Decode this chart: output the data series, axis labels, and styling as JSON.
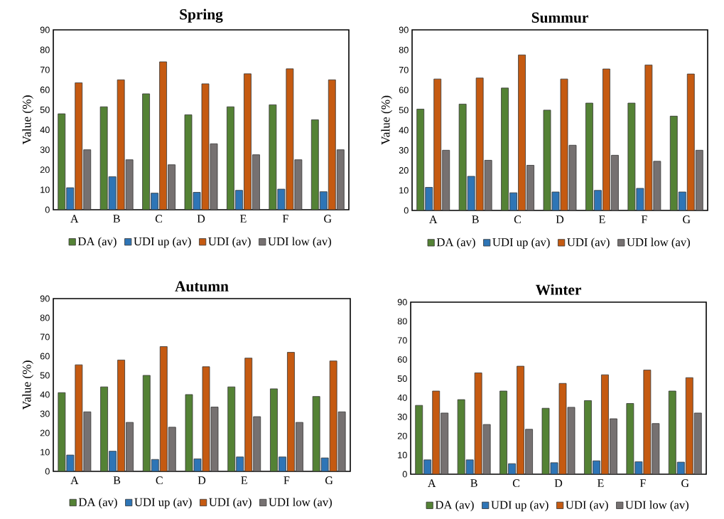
{
  "chart_data": [
    {
      "type": "bar",
      "title": "Spring",
      "ylabel": "Value (%)",
      "categories": [
        "A",
        "B",
        "C",
        "D",
        "E",
        "F",
        "G"
      ],
      "ylim": [
        0,
        90
      ],
      "yticks": [
        0,
        10,
        20,
        30,
        40,
        50,
        60,
        70,
        80,
        90
      ],
      "legend": "bottom",
      "series": [
        {
          "name": "DA (av)",
          "color": "#548235",
          "values": [
            48,
            51.5,
            58,
            47.5,
            51.5,
            52.5,
            45
          ]
        },
        {
          "name": "UDI up (av)",
          "color": "#2e75b6",
          "values": [
            11,
            16.5,
            8.3,
            8.7,
            9.7,
            10.3,
            9
          ]
        },
        {
          "name": "UDI (av)",
          "color": "#c55a11",
          "values": [
            63.5,
            65,
            74,
            63,
            68,
            70.5,
            65
          ]
        },
        {
          "name": "UDI low (av)",
          "color": "#767171",
          "values": [
            30,
            25,
            22.5,
            33,
            27.5,
            25,
            30
          ]
        }
      ]
    },
    {
      "type": "bar",
      "title": "Summur",
      "ylabel": "Value (%)",
      "categories": [
        "A",
        "B",
        "C",
        "D",
        "E",
        "F",
        "G"
      ],
      "ylim": [
        0,
        90
      ],
      "yticks": [
        0,
        10,
        20,
        30,
        40,
        50,
        60,
        70,
        80,
        90
      ],
      "legend": "bottom",
      "series": [
        {
          "name": "DA (av)",
          "color": "#548235",
          "values": [
            50.5,
            53,
            61,
            50,
            53.5,
            53.5,
            47
          ]
        },
        {
          "name": "UDI up (av)",
          "color": "#2e75b6",
          "values": [
            11.5,
            17,
            8.8,
            9.2,
            10,
            11,
            9.2
          ]
        },
        {
          "name": "UDI (av)",
          "color": "#c55a11",
          "values": [
            65.5,
            66,
            77.5,
            65.5,
            70.5,
            72.5,
            68
          ]
        },
        {
          "name": "UDI low (av)",
          "color": "#767171",
          "values": [
            30,
            25,
            22.5,
            32.5,
            27.5,
            24.5,
            30
          ]
        }
      ]
    },
    {
      "type": "bar",
      "title": "Autumn",
      "ylabel": "Value (%)",
      "categories": [
        "A",
        "B",
        "C",
        "D",
        "E",
        "F",
        "G"
      ],
      "ylim": [
        0,
        90
      ],
      "yticks": [
        0,
        10,
        20,
        30,
        40,
        50,
        60,
        70,
        80,
        90
      ],
      "legend": "bottom",
      "series": [
        {
          "name": "DA (av)",
          "color": "#548235",
          "values": [
            41,
            44,
            50,
            40,
            44,
            43,
            39
          ]
        },
        {
          "name": "UDI up (av)",
          "color": "#2e75b6",
          "values": [
            8.5,
            10.5,
            6.2,
            6.5,
            7.5,
            7.5,
            7
          ]
        },
        {
          "name": "UDI (av)",
          "color": "#c55a11",
          "values": [
            55.5,
            58,
            65,
            54.5,
            59,
            62,
            57.5
          ]
        },
        {
          "name": "UDI low (av)",
          "color": "#767171",
          "values": [
            31,
            25.5,
            23,
            33.5,
            28.5,
            25.5,
            31
          ]
        }
      ]
    },
    {
      "type": "bar",
      "title": "Winter",
      "categories": [
        "A",
        "B",
        "C",
        "D",
        "E",
        "F",
        "G"
      ],
      "ylim": [
        0,
        90
      ],
      "yticks": [
        0,
        10,
        20,
        30,
        40,
        50,
        60,
        70,
        80,
        90
      ],
      "legend": "bottom",
      "series": [
        {
          "name": "DA (av)",
          "color": "#548235",
          "values": [
            36,
            39,
            43.5,
            34.5,
            38.5,
            37,
            43.5
          ]
        },
        {
          "name": "UDI up (av)",
          "color": "#2e75b6",
          "values": [
            7.5,
            7.5,
            5.5,
            6,
            7,
            6.5,
            6.3
          ]
        },
        {
          "name": "UDI (av)",
          "color": "#c55a11",
          "values": [
            43.5,
            53,
            56.5,
            47.5,
            52,
            54.5,
            50.5
          ]
        },
        {
          "name": "UDI low (av)",
          "color": "#767171",
          "values": [
            32,
            26,
            23.5,
            35,
            29,
            26.5,
            32
          ]
        }
      ]
    }
  ]
}
